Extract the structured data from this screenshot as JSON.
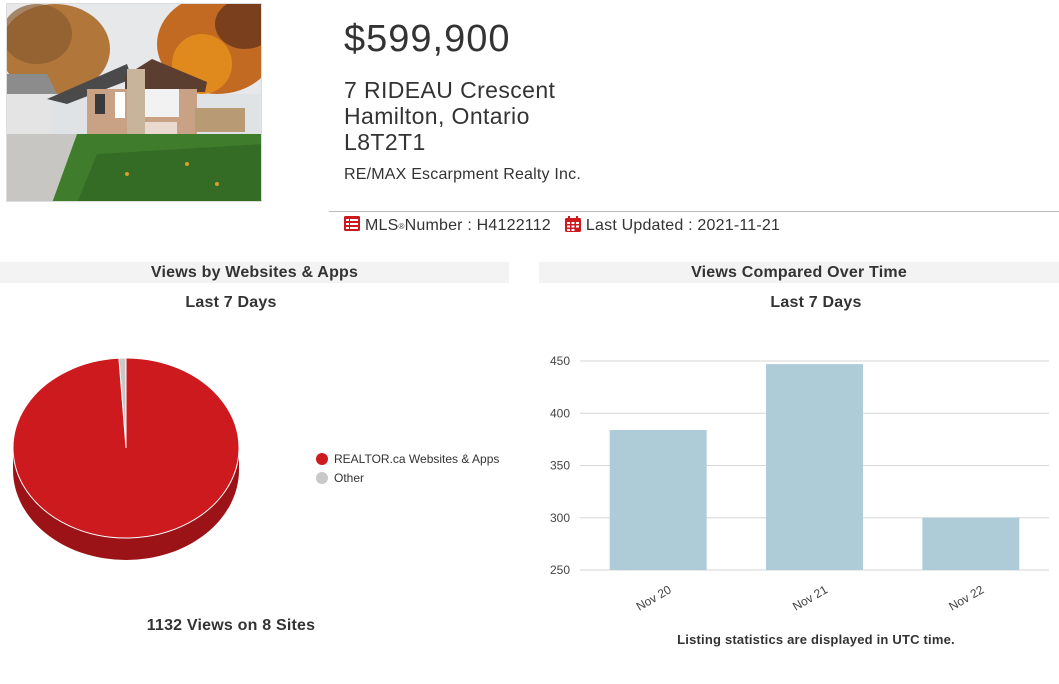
{
  "listing": {
    "price": "$599,900",
    "address_line1": "7 RIDEAU Crescent",
    "address_line2": "Hamilton, Ontario",
    "postal_code": "L8T2T1",
    "brokerage": "RE/MAX Escarpment Realty Inc.",
    "mls_label": "MLS",
    "mls_number_label": " Number : H4122112",
    "last_updated": "Last Updated : 2021-11-21"
  },
  "left_panel": {
    "title": "Views by Websites & Apps",
    "subtitle": "Last 7 Days",
    "legend": [
      {
        "label": "REALTOR.ca Websites & Apps",
        "color": "#cc1a1f"
      },
      {
        "label": "Other",
        "color": "#c8c8c8"
      }
    ],
    "summary": "1132 Views on 8 Sites"
  },
  "right_panel": {
    "title": "Views Compared Over Time",
    "subtitle": "Last 7 Days",
    "note": "Listing statistics are displayed in UTC time."
  },
  "colors": {
    "accent_red": "#cc1a1f",
    "bar_blue": "#aecbd8",
    "panel_bg": "#f3f3f3"
  },
  "chart_data": [
    {
      "type": "pie",
      "categories": [
        "REALTOR.ca Websites & Apps",
        "Other"
      ],
      "values": [
        99,
        1
      ],
      "title": "Views by Websites & Apps"
    },
    {
      "type": "bar",
      "categories": [
        "Nov 20",
        "Nov 21",
        "Nov 22"
      ],
      "values": [
        384,
        447,
        300
      ],
      "title": "Views Compared Over Time",
      "ylim": [
        250,
        450
      ],
      "yticks": [
        250,
        300,
        350,
        400,
        450
      ],
      "grid": true
    }
  ]
}
